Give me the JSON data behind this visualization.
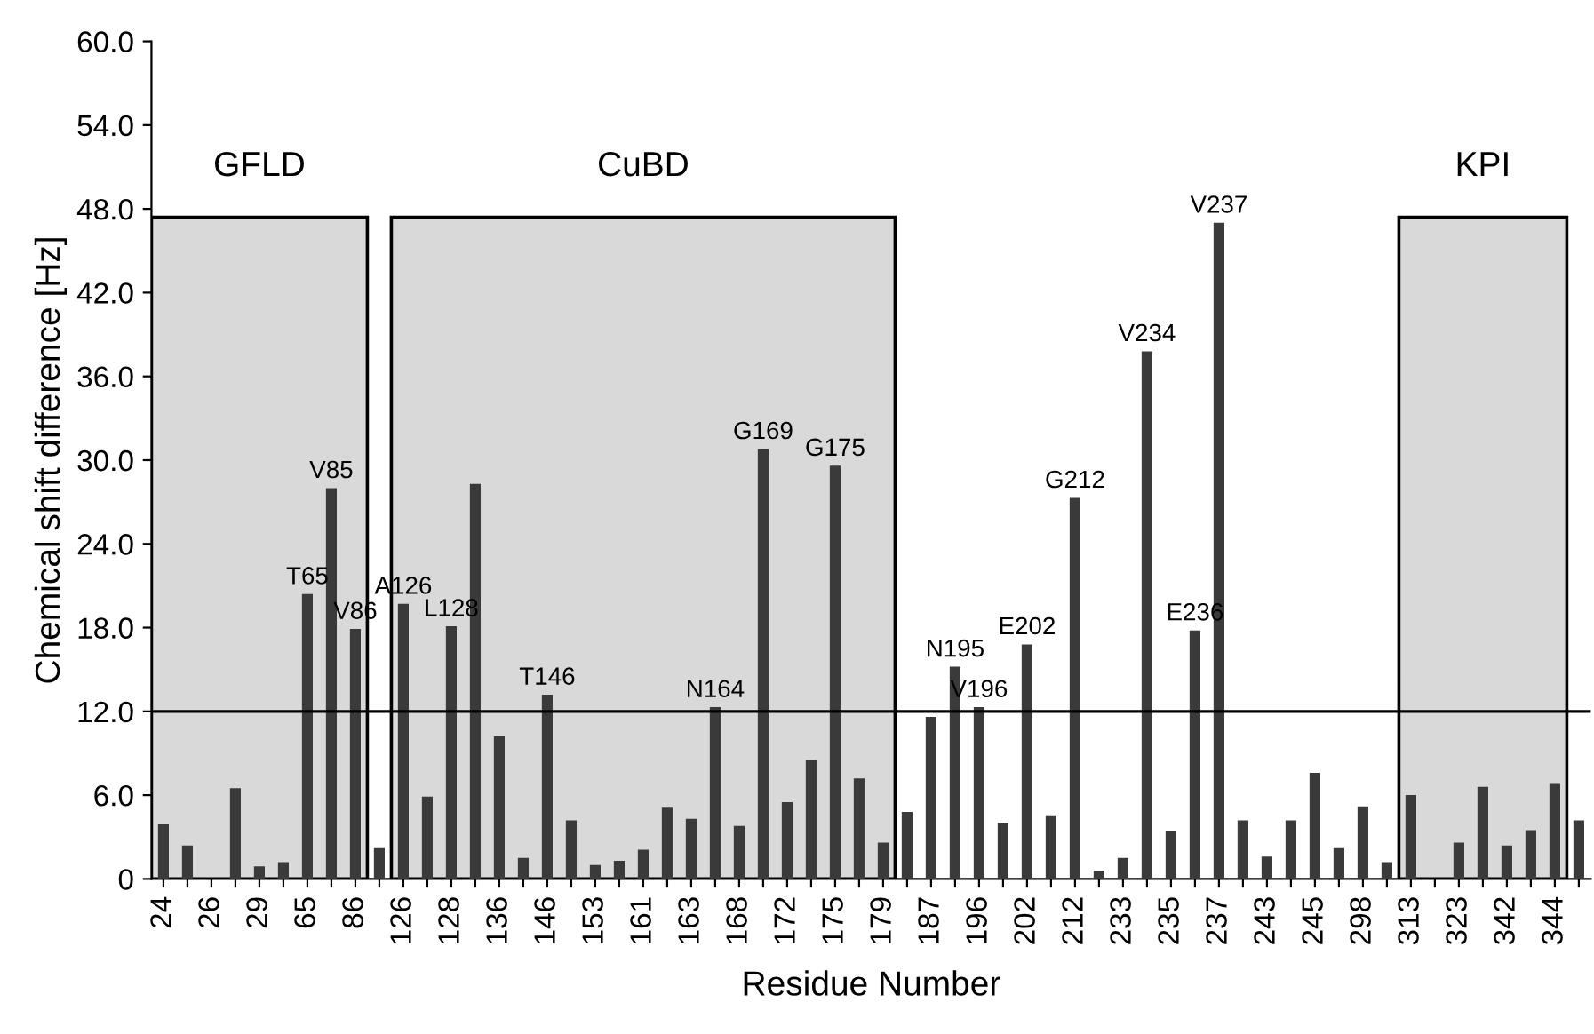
{
  "chart_data": {
    "type": "bar",
    "xlabel": "Residue Number",
    "ylabel": "Chemical shift difference [Hz]",
    "categories": [
      "24",
      null,
      "26",
      null,
      "29",
      null,
      "65",
      null,
      "86",
      null,
      "126",
      null,
      "128",
      null,
      "136",
      null,
      "146",
      null,
      "153",
      null,
      "161",
      null,
      "163",
      null,
      "168",
      null,
      "172",
      null,
      "175",
      null,
      "179",
      null,
      "187",
      null,
      "196",
      null,
      "202",
      null,
      "212",
      null,
      "233",
      null,
      "235",
      null,
      "237",
      null,
      "243",
      null,
      "245",
      null,
      "298",
      null,
      "313",
      null,
      "323",
      null,
      "342",
      null,
      "344",
      null
    ],
    "values": [
      3.9,
      2.4,
      0,
      6.5,
      0.9,
      1.2,
      20.4,
      28.0,
      17.9,
      2.2,
      19.7,
      5.9,
      18.1,
      28.3,
      10.2,
      1.5,
      13.2,
      4.2,
      1.0,
      1.3,
      2.1,
      5.1,
      4.3,
      12.3,
      3.8,
      30.8,
      5.5,
      8.5,
      29.6,
      7.2,
      2.6,
      4.8,
      11.6,
      15.2,
      12.3,
      4.0,
      16.8,
      4.5,
      27.3,
      0.6,
      1.5,
      37.8,
      3.4,
      17.8,
      47.0,
      4.2,
      1.6,
      4.2,
      7.6,
      2.2,
      5.2,
      1.2,
      6.0,
      0,
      2.6,
      6.6,
      2.4,
      3.5,
      6.8,
      4.2
    ],
    "value_labels": [
      null,
      null,
      null,
      null,
      null,
      null,
      "T65",
      "V85",
      "V86",
      null,
      "A126",
      null,
      "L128",
      null,
      null,
      null,
      "T146",
      null,
      null,
      null,
      null,
      null,
      null,
      "N164",
      null,
      "G169",
      null,
      null,
      "G175",
      null,
      null,
      null,
      null,
      "N195",
      "V196",
      null,
      "E202",
      null,
      "G212",
      null,
      null,
      "V234",
      null,
      "E236",
      "V237",
      null,
      null,
      null,
      null,
      null,
      null,
      null,
      null,
      null,
      null,
      null,
      null,
      null,
      null,
      null
    ],
    "color": "#3a3a3a",
    "ylim": [
      0,
      60
    ],
    "yticks": [
      0,
      {
        "value": 6,
        "label": "6.0"
      },
      {
        "value": 12,
        "label": "12.0"
      },
      {
        "value": 18,
        "label": "18.0"
      },
      {
        "value": 24,
        "label": "24.0"
      },
      {
        "value": 30,
        "label": "30.0"
      },
      {
        "value": 36,
        "label": "36.0"
      },
      {
        "value": 42,
        "label": "42.0"
      },
      {
        "value": 48,
        "label": "48.0"
      },
      {
        "value": 54,
        "label": "54.0"
      },
      {
        "value": 60,
        "label": "60.0"
      }
    ],
    "ref_lines": [
      {
        "axis": "y",
        "value": 12,
        "color": "#000000"
      }
    ],
    "bands": [
      {
        "axis": "x",
        "from": "24",
        "to": "86",
        "label": "GFLD",
        "color": "#d9d9d9"
      },
      {
        "axis": "x",
        "from": "126",
        "to": "179",
        "label": "CuBD",
        "color": "#d9d9d9"
      },
      {
        "axis": "x",
        "from": "313",
        "to": "344",
        "label": "KPI",
        "color": "#d9d9d9"
      }
    ],
    "grid": false,
    "legend": false
  }
}
